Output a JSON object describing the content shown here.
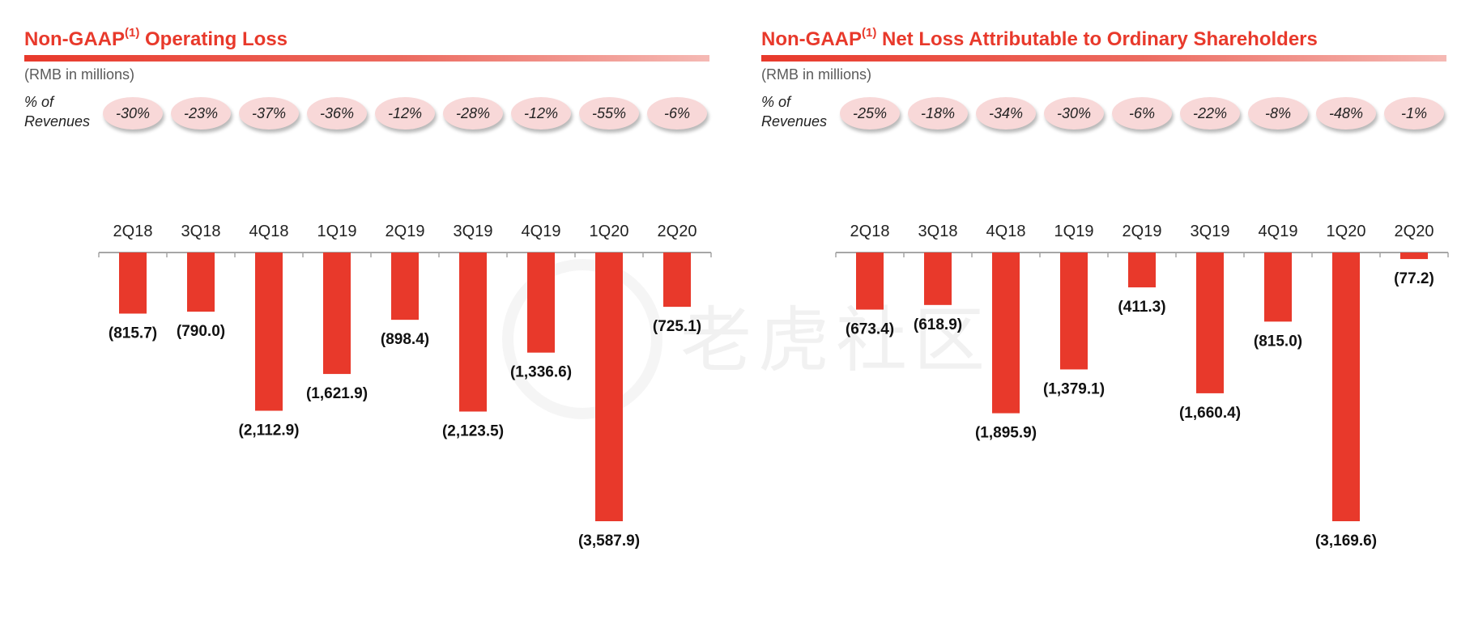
{
  "panels": [
    {
      "title": "Non-GAAP",
      "title_sup": "(1)",
      "title_rest": " Operating Loss",
      "subtitle": "(RMB in millions)",
      "pct_label_line1": "% of",
      "pct_label_line2": "Revenues",
      "pct": [
        "-30%",
        "-23%",
        "-37%",
        "-36%",
        "-12%",
        "-28%",
        "-12%",
        "-55%",
        "-6%"
      ]
    },
    {
      "title": "Non-GAAP",
      "title_sup": "(1)",
      "title_rest": " Net Loss Attributable to Ordinary Shareholders",
      "subtitle": "(RMB in millions)",
      "pct_label_line1": "% of",
      "pct_label_line2": "Revenues",
      "pct": [
        "-25%",
        "-18%",
        "-34%",
        "-30%",
        "-6%",
        "-22%",
        "-8%",
        "-48%",
        "-1%"
      ]
    }
  ],
  "chart_data": [
    {
      "type": "bar",
      "title": "Non-GAAP(1) Operating Loss",
      "categories": [
        "2Q18",
        "3Q18",
        "4Q18",
        "1Q19",
        "2Q19",
        "3Q19",
        "4Q19",
        "1Q20",
        "2Q20"
      ],
      "values": [
        -815.7,
        -790.0,
        -2112.9,
        -1621.9,
        -898.4,
        -2123.5,
        -1336.6,
        -3587.9,
        -725.1
      ],
      "value_labels": [
        "(815.7)",
        "(790.0)",
        "(2,112.9)",
        "(1,621.9)",
        "(898.4)",
        "(2,123.5)",
        "(1,336.6)",
        "(3,587.9)",
        "(725.1)"
      ],
      "bar_color": "#e8392b",
      "axis_color": "#a6a6a6",
      "ylim": [
        -3587.9,
        0
      ],
      "grid": false
    },
    {
      "type": "bar",
      "title": "Non-GAAP(1) Net Loss Attributable to Ordinary Shareholders",
      "categories": [
        "2Q18",
        "3Q18",
        "4Q18",
        "1Q19",
        "2Q19",
        "3Q19",
        "4Q19",
        "1Q20",
        "2Q20"
      ],
      "values": [
        -673.4,
        -618.9,
        -1895.9,
        -1379.1,
        -411.3,
        -1660.4,
        -815.0,
        -3169.6,
        -77.2
      ],
      "value_labels": [
        "(673.4)",
        "(618.9)",
        "(1,895.9)",
        "(1,379.1)",
        "(411.3)",
        "(1,660.4)",
        "(815.0)",
        "(3,169.6)",
        "(77.2)"
      ],
      "bar_color": "#e8392b",
      "axis_color": "#a6a6a6",
      "ylim": [
        -3169.6,
        0
      ],
      "grid": false
    }
  ],
  "watermark_text": "老虎社区"
}
